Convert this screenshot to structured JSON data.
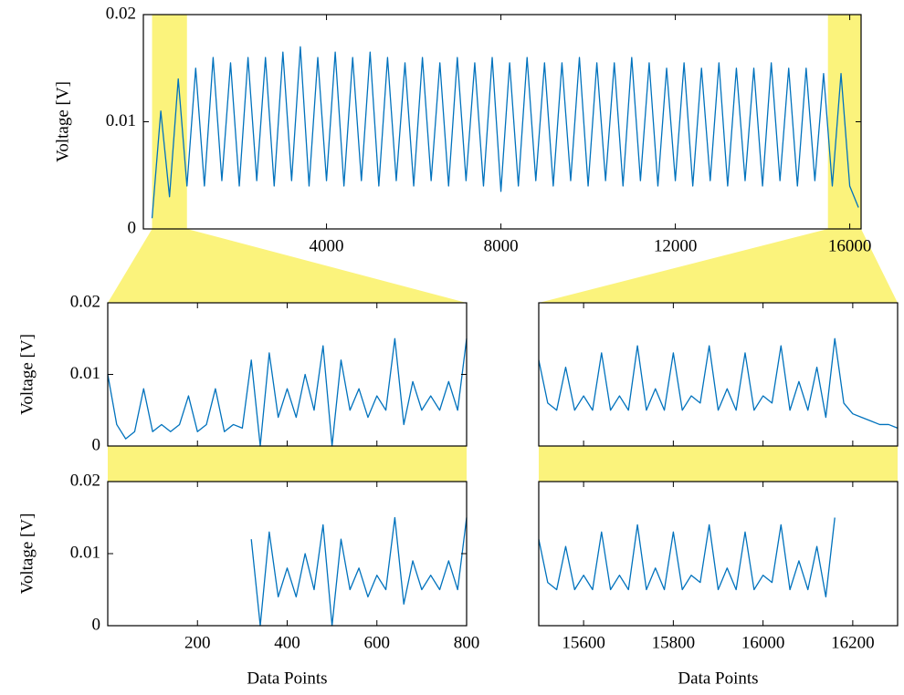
{
  "chart_data": [
    {
      "type": "line",
      "ylabel": "Voltage [V]",
      "color": "#0072bd",
      "highlight_color": "#fbf37c",
      "xlim": [
        -200,
        16260
      ],
      "ylim": [
        0,
        0.02
      ],
      "xticks": [
        4000,
        8000,
        12000,
        16000
      ],
      "yticks": [
        0,
        0.01,
        0.02
      ],
      "highlights": [
        [
          0,
          800
        ],
        [
          15500,
          16260
        ]
      ],
      "x": [
        0,
        200,
        400,
        600,
        800,
        1000,
        1200,
        1400,
        1600,
        1800,
        2000,
        2200,
        2400,
        2600,
        2800,
        3000,
        3200,
        3400,
        3600,
        3800,
        4000,
        4200,
        4400,
        4600,
        4800,
        5000,
        5200,
        5400,
        5600,
        5800,
        6000,
        6200,
        6400,
        6600,
        6800,
        7000,
        7200,
        7400,
        7600,
        7800,
        8000,
        8200,
        8400,
        8600,
        8800,
        9000,
        9200,
        9400,
        9600,
        9800,
        10000,
        10200,
        10400,
        10600,
        10800,
        11000,
        11200,
        11400,
        11600,
        11800,
        12000,
        12200,
        12400,
        12600,
        12800,
        13000,
        13200,
        13400,
        13600,
        13800,
        14000,
        14200,
        14400,
        14600,
        14800,
        15000,
        15200,
        15400,
        15600,
        15800,
        16000,
        16200
      ],
      "values": [
        0.001,
        0.011,
        0.003,
        0.014,
        0.004,
        0.015,
        0.004,
        0.016,
        0.0045,
        0.0155,
        0.004,
        0.016,
        0.0045,
        0.016,
        0.004,
        0.0165,
        0.0045,
        0.017,
        0.004,
        0.016,
        0.0045,
        0.0165,
        0.004,
        0.016,
        0.0045,
        0.0165,
        0.004,
        0.016,
        0.0045,
        0.0155,
        0.004,
        0.016,
        0.0045,
        0.0155,
        0.004,
        0.016,
        0.0045,
        0.0155,
        0.004,
        0.016,
        0.0035,
        0.0155,
        0.004,
        0.016,
        0.0045,
        0.0155,
        0.004,
        0.0155,
        0.0045,
        0.016,
        0.004,
        0.0155,
        0.0045,
        0.0155,
        0.004,
        0.016,
        0.0045,
        0.0155,
        0.004,
        0.015,
        0.0045,
        0.0155,
        0.004,
        0.015,
        0.0045,
        0.0155,
        0.004,
        0.015,
        0.0045,
        0.015,
        0.004,
        0.0155,
        0.0045,
        0.015,
        0.004,
        0.015,
        0.0045,
        0.0145,
        0.004,
        0.0145,
        0.004,
        0.002
      ]
    },
    {
      "type": "line",
      "ylabel": "Voltage [V]",
      "color": "#0072bd",
      "xlim": [
        0,
        800
      ],
      "ylim": [
        0,
        0.02
      ],
      "xticks": [
        200,
        400,
        600,
        800
      ],
      "yticks": [
        0,
        0.01,
        0.02
      ],
      "show_xtick_labels": false,
      "x": [
        0,
        20,
        40,
        60,
        80,
        100,
        120,
        140,
        160,
        180,
        200,
        220,
        240,
        260,
        280,
        300,
        320,
        340,
        360,
        380,
        400,
        420,
        440,
        460,
        480,
        500,
        520,
        540,
        560,
        580,
        600,
        620,
        640,
        660,
        680,
        700,
        720,
        740,
        760,
        780,
        800
      ],
      "values": [
        0.01,
        0.003,
        0.001,
        0.002,
        0.008,
        0.002,
        0.003,
        0.002,
        0.003,
        0.007,
        0.002,
        0.003,
        0.008,
        0.002,
        0.003,
        0.0025,
        0.012,
        0.0,
        0.013,
        0.004,
        0.008,
        0.004,
        0.01,
        0.005,
        0.014,
        0.0,
        0.012,
        0.005,
        0.008,
        0.004,
        0.007,
        0.005,
        0.015,
        0.003,
        0.009,
        0.005,
        0.007,
        0.005,
        0.009,
        0.005,
        0.015
      ]
    },
    {
      "type": "line",
      "color": "#0072bd",
      "xlim": [
        15500,
        16300
      ],
      "ylim": [
        0,
        0.02
      ],
      "xticks": [
        15600,
        15800,
        16000,
        16200
      ],
      "show_xtick_labels": false,
      "x": [
        15500,
        15520,
        15540,
        15560,
        15580,
        15600,
        15620,
        15640,
        15660,
        15680,
        15700,
        15720,
        15740,
        15760,
        15780,
        15800,
        15820,
        15840,
        15860,
        15880,
        15900,
        15920,
        15940,
        15960,
        15980,
        16000,
        16020,
        16040,
        16060,
        16080,
        16100,
        16120,
        16140,
        16160,
        16180,
        16200,
        16220,
        16240,
        16260,
        16280,
        16300
      ],
      "values": [
        0.012,
        0.006,
        0.005,
        0.011,
        0.005,
        0.007,
        0.005,
        0.013,
        0.005,
        0.007,
        0.005,
        0.014,
        0.005,
        0.008,
        0.005,
        0.013,
        0.005,
        0.007,
        0.006,
        0.014,
        0.005,
        0.008,
        0.005,
        0.013,
        0.005,
        0.007,
        0.006,
        0.014,
        0.005,
        0.009,
        0.005,
        0.011,
        0.004,
        0.015,
        0.006,
        0.0045,
        0.004,
        0.0035,
        0.003,
        0.003,
        0.0025
      ]
    },
    {
      "type": "line",
      "ylabel": "Voltage [V]",
      "xlabel": "Data Points",
      "color": "#0072bd",
      "xlim": [
        0,
        800
      ],
      "ylim": [
        0,
        0.02
      ],
      "xticks": [
        200,
        400,
        600,
        800
      ],
      "yticks": [
        0,
        0.01,
        0.02
      ],
      "x": [
        0,
        20,
        40,
        60,
        80,
        100,
        120,
        140,
        160,
        180,
        200,
        220,
        240,
        260,
        280,
        300,
        320,
        340,
        360,
        380,
        400,
        420,
        440,
        460,
        480,
        500,
        520,
        540,
        560,
        580,
        600,
        620,
        640,
        660,
        680,
        700,
        720,
        740,
        760,
        780,
        800
      ],
      "values": [
        null,
        null,
        null,
        null,
        null,
        null,
        null,
        null,
        null,
        null,
        null,
        null,
        null,
        null,
        null,
        null,
        0.012,
        0.0,
        0.013,
        0.004,
        0.008,
        0.004,
        0.01,
        0.005,
        0.014,
        0.0,
        0.012,
        0.005,
        0.008,
        0.004,
        0.007,
        0.005,
        0.015,
        0.003,
        0.009,
        0.005,
        0.007,
        0.005,
        0.009,
        0.005,
        0.015
      ]
    },
    {
      "type": "line",
      "xlabel": "Data Points",
      "color": "#0072bd",
      "xlim": [
        15500,
        16300
      ],
      "ylim": [
        0,
        0.02
      ],
      "xticks": [
        15600,
        15800,
        16000,
        16200
      ],
      "x": [
        15500,
        15520,
        15540,
        15560,
        15580,
        15600,
        15620,
        15640,
        15660,
        15680,
        15700,
        15720,
        15740,
        15760,
        15780,
        15800,
        15820,
        15840,
        15860,
        15880,
        15900,
        15920,
        15940,
        15960,
        15980,
        16000,
        16020,
        16040,
        16060,
        16080,
        16100,
        16120,
        16140,
        16160,
        16180,
        16200,
        16220,
        16240,
        16260,
        16280,
        16300
      ],
      "values": [
        0.012,
        0.006,
        0.005,
        0.011,
        0.005,
        0.007,
        0.005,
        0.013,
        0.005,
        0.007,
        0.005,
        0.014,
        0.005,
        0.008,
        0.005,
        0.013,
        0.005,
        0.007,
        0.006,
        0.014,
        0.005,
        0.008,
        0.005,
        0.013,
        0.005,
        0.007,
        0.006,
        0.014,
        0.005,
        0.009,
        0.005,
        0.011,
        0.004,
        0.015,
        null,
        null,
        null,
        null,
        null,
        null,
        null
      ]
    }
  ]
}
